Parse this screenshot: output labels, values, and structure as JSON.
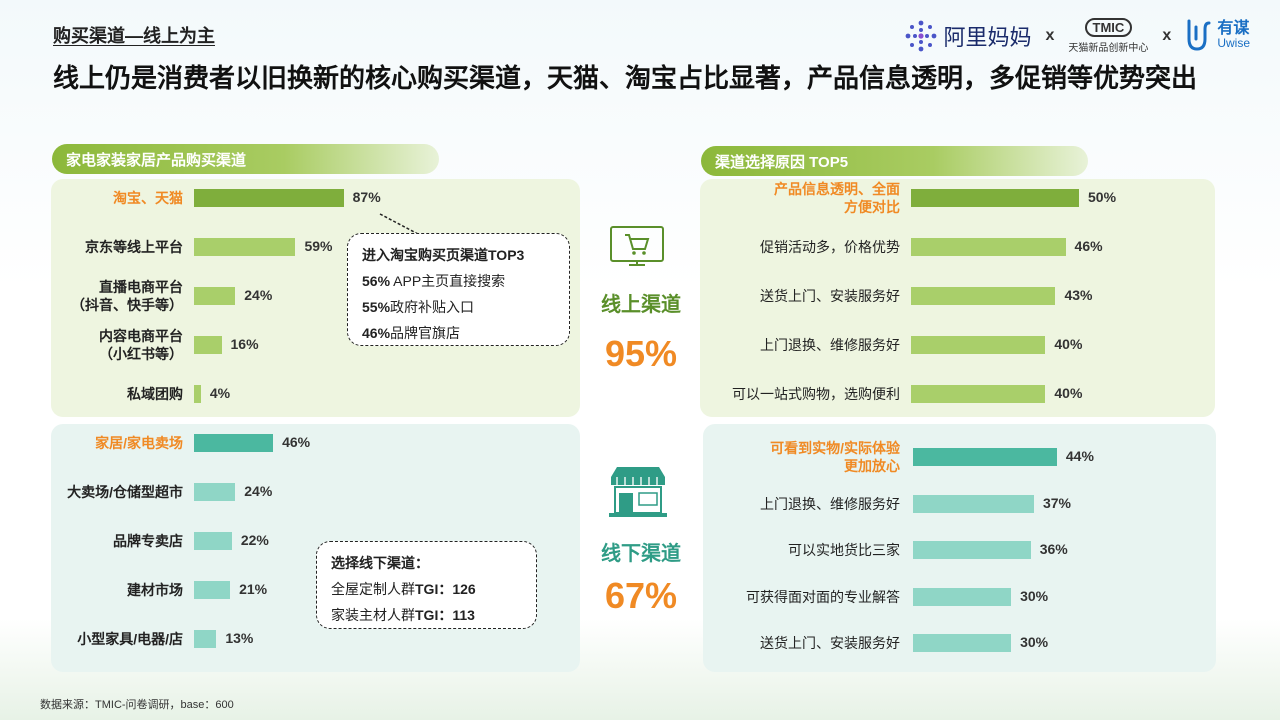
{
  "section_title": "购买渠道—线上为主",
  "headline": "线上仍是消费者以旧换新的核心购买渠道，天猫、淘宝占比显著，产品信息透明，多促销等优势突出",
  "logos": {
    "alimama": "阿里妈妈",
    "x1": "x",
    "tmic": "TMIC",
    "tmic_sub": "天猫新品创新中心",
    "x2": "x",
    "uwise_cn": "有谋",
    "uwise_en": "Uwise"
  },
  "left_pill": "家电家装家居产品购买渠道",
  "right_pill": "渠道选择原因 TOP5",
  "online": {
    "label": "线上渠道",
    "pct": "95%"
  },
  "offline": {
    "label": "线下渠道",
    "pct": "67%"
  },
  "callout_online": {
    "title": "进入淘宝购买页渠道TOP3",
    "lines": [
      {
        "pct": "56%",
        "text": "APP主页直接搜索"
      },
      {
        "pct": "55%",
        "text": "政府补贴入口"
      },
      {
        "pct": "46%",
        "text": "品牌官旗店"
      }
    ]
  },
  "callout_offline": {
    "title": "选择线下渠道：",
    "lines": [
      {
        "text": "全屋定制人群",
        "tgi_label": "TGI：",
        "tgi": "126"
      },
      {
        "text": "家装主材人群",
        "tgi_label": "TGI：",
        "tgi": "113"
      }
    ]
  },
  "colors": {
    "green_dark": "#7fae3c",
    "green_light": "#a9cf6a",
    "teal_dark": "#4bb8a0",
    "teal_light": "#8fd6c6",
    "orange": "#f08a24"
  },
  "chart_data": [
    {
      "type": "bar",
      "orientation": "horizontal",
      "categories": [
        "淘宝、天猫",
        "京东等线上平台",
        "直播电商平台\n（抖音、快手等）",
        "内容电商平台\n（小红书等）",
        "私域团购"
      ],
      "values": [
        87,
        59,
        24,
        16,
        4
      ],
      "value_labels": [
        "87%",
        "59%",
        "24%",
        "16%",
        "4%"
      ]
    },
    {
      "type": "bar",
      "orientation": "horizontal",
      "categories": [
        "家居/家电卖场",
        "大卖场/仓储型超市",
        "品牌专卖店",
        "建材市场",
        "小型家具/电器/店"
      ],
      "values": [
        46,
        24,
        22,
        21,
        13
      ],
      "value_labels": [
        "46%",
        "24%",
        "22%",
        "21%",
        "13%"
      ]
    },
    {
      "type": "bar",
      "orientation": "horizontal",
      "categories": [
        "产品信息透明、全面\n方便对比",
        "促销活动多，价格优势",
        "送货上门、安装服务好",
        "上门退换、维修服务好",
        "可以一站式购物，选购便利"
      ],
      "values": [
        50,
        46,
        43,
        40,
        40
      ],
      "value_labels": [
        "50%",
        "46%",
        "43%",
        "40%",
        "40%"
      ]
    },
    {
      "type": "bar",
      "orientation": "horizontal",
      "categories": [
        "可看到实物/实际体验\n更加放心",
        "上门退换、维修服务好",
        "可以实地货比三家",
        "可获得面对面的专业解答",
        "送货上门、安装服务好"
      ],
      "values": [
        44,
        37,
        36,
        30,
        30
      ],
      "value_labels": [
        "44%",
        "37%",
        "36%",
        "30%",
        "30%"
      ]
    }
  ],
  "footer": "数据来源：TMIC-问卷调研，base：600"
}
